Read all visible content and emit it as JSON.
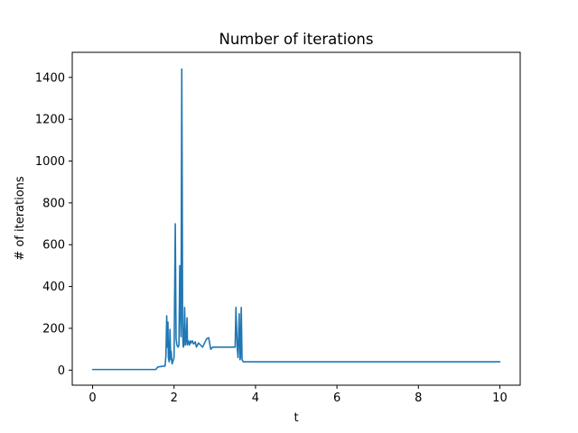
{
  "chart_data": {
    "type": "line",
    "title": "Number of iterations",
    "xlabel": "t",
    "ylabel": "# of iterations",
    "xlim": [
      -0.5,
      10.5
    ],
    "ylim": [
      -72,
      1520
    ],
    "grid": false,
    "x_ticks": [
      0,
      2,
      4,
      6,
      8,
      10
    ],
    "x_tick_labels": [
      "0",
      "2",
      "4",
      "6",
      "8",
      "10"
    ],
    "y_ticks": [
      0,
      200,
      400,
      600,
      800,
      1000,
      1200,
      1400
    ],
    "y_tick_labels": [
      "0",
      "200",
      "400",
      "600",
      "800",
      "1000",
      "1200",
      "1400"
    ],
    "series": [
      {
        "color": "#1f77b4",
        "x": [
          0,
          1.55,
          1.6,
          1.78,
          1.8,
          1.82,
          1.83,
          1.85,
          1.86,
          1.88,
          1.9,
          1.92,
          1.93,
          1.95,
          1.97,
          2.0,
          2.03,
          2.05,
          2.07,
          2.1,
          2.12,
          2.14,
          2.17,
          2.19,
          2.2,
          2.21,
          2.22,
          2.23,
          2.24,
          2.26,
          2.28,
          2.3,
          2.32,
          2.33,
          2.35,
          2.37,
          2.38,
          2.4,
          2.42,
          2.45,
          2.48,
          2.52,
          2.55,
          2.6,
          2.65,
          2.7,
          2.75,
          2.8,
          2.85,
          2.9,
          2.95,
          3.0,
          3.02,
          3.05,
          3.1,
          3.5,
          3.52,
          3.55,
          3.57,
          3.6,
          3.62,
          3.63,
          3.65,
          3.67,
          3.7,
          3.72,
          3.75,
          3.8,
          10.0
        ],
        "y": [
          3,
          3,
          15,
          20,
          70,
          260,
          110,
          230,
          60,
          40,
          195,
          50,
          90,
          30,
          40,
          60,
          700,
          150,
          120,
          110,
          120,
          500,
          160,
          1440,
          900,
          220,
          120,
          110,
          120,
          300,
          120,
          140,
          250,
          120,
          140,
          130,
          120,
          140,
          130,
          140,
          125,
          135,
          110,
          130,
          120,
          110,
          130,
          150,
          155,
          100,
          110,
          110,
          110,
          110,
          110,
          110,
          300,
          110,
          60,
          270,
          50,
          60,
          300,
          50,
          40,
          40,
          40,
          40,
          40
        ]
      }
    ]
  }
}
